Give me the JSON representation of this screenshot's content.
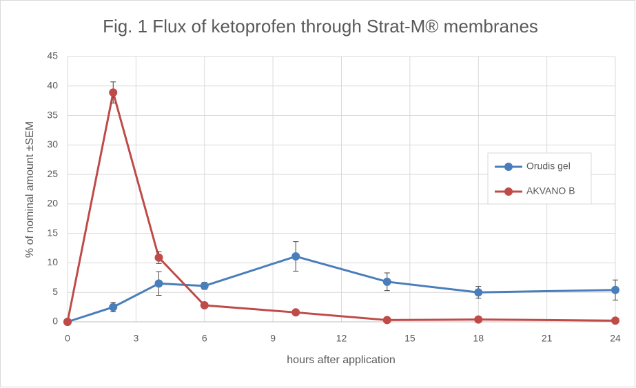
{
  "chart_data": {
    "type": "line",
    "title": "Fig. 1 Flux of ketoprofen through Strat-M® membranes",
    "xlabel": "hours after application",
    "ylabel": "% of nominal amount ±SEM",
    "x": [
      0,
      2,
      4,
      6,
      10,
      14,
      18,
      24
    ],
    "series": [
      {
        "name": "Orudis gel",
        "color": "#4a7ebb",
        "values": [
          0,
          2.5,
          6.5,
          6.1,
          11.1,
          6.8,
          5.0,
          5.4
        ],
        "errors": [
          0,
          0.8,
          2.0,
          0.6,
          2.5,
          1.5,
          1.0,
          1.7
        ]
      },
      {
        "name": "AKVANO B",
        "color": "#be4b48",
        "values": [
          0,
          38.9,
          10.9,
          2.8,
          1.6,
          0.3,
          0.4,
          0.2
        ],
        "errors": [
          0,
          1.8,
          1.0,
          0,
          0,
          0,
          0,
          0
        ]
      }
    ],
    "xlim": [
      0,
      24
    ],
    "xticks": [
      0,
      3,
      6,
      9,
      12,
      15,
      18,
      21,
      24
    ],
    "ylim": [
      0,
      45
    ],
    "yticks": [
      0,
      5,
      10,
      15,
      20,
      25,
      30,
      35,
      40,
      45
    ],
    "grid": true,
    "legend": "right"
  }
}
